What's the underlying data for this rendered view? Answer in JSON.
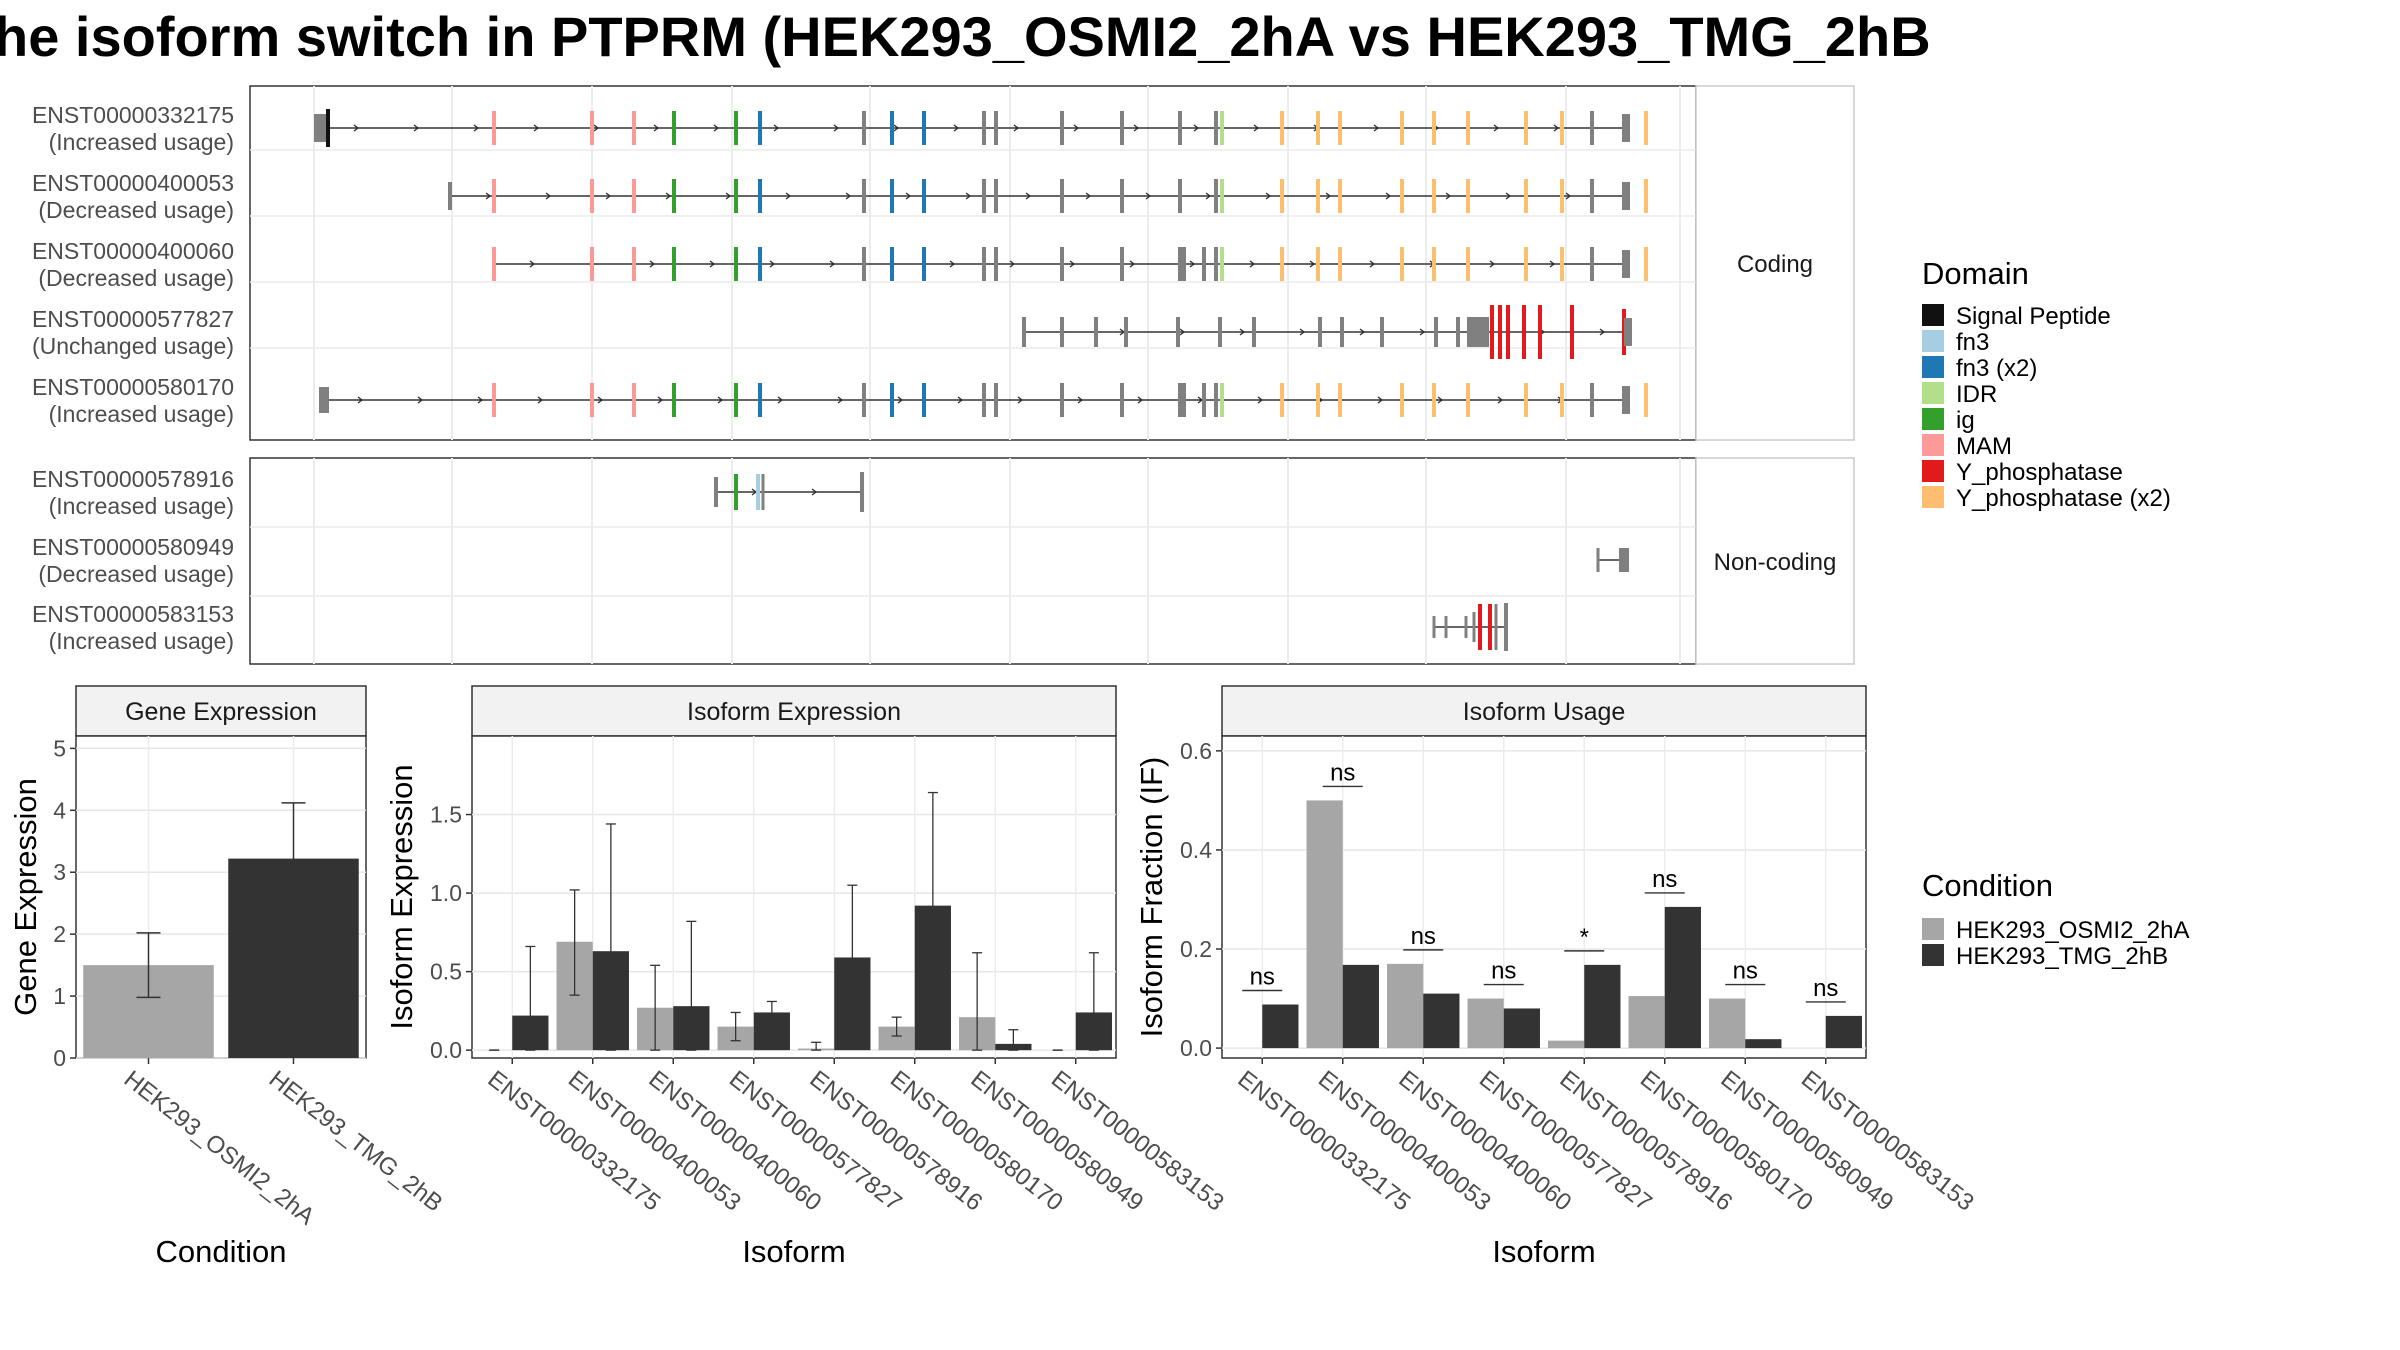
{
  "title": "he isoform switch in PTPRM (HEK293_OSMI2_2hA vs HEK293_TMG_2hB",
  "colors": {
    "domains": {
      "Signal Peptide": "#111111",
      "fn3": "#a6cee3",
      "fn3 (x2)": "#1f78b4",
      "IDR": "#b2df8a",
      "ig": "#33a02c",
      "MAM": "#fb9a99",
      "Y_phosphatase": "#e31a1c",
      "Y_phosphatase (x2)": "#fdbf6f"
    },
    "exon": "#808080",
    "condition_a": "#a6a6a6",
    "condition_b": "#333333"
  },
  "structure": {
    "facets": [
      "Coding",
      "Non-coding"
    ],
    "isoforms": [
      {
        "id": "ENST00000332175",
        "usage": "(Increased usage)",
        "facet": "Coding"
      },
      {
        "id": "ENST00000400053",
        "usage": "(Decreased usage)",
        "facet": "Coding"
      },
      {
        "id": "ENST00000400060",
        "usage": "(Decreased usage)",
        "facet": "Coding"
      },
      {
        "id": "ENST00000577827",
        "usage": "(Unchanged usage)",
        "facet": "Coding"
      },
      {
        "id": "ENST00000580170",
        "usage": "(Increased usage)",
        "facet": "Coding"
      },
      {
        "id": "ENST00000578916",
        "usage": "(Increased usage)",
        "facet": "Non-coding"
      },
      {
        "id": "ENST00000580949",
        "usage": "(Decreased usage)",
        "facet": "Non-coding"
      },
      {
        "id": "ENST00000583153",
        "usage": "(Increased usage)",
        "facet": "Non-coding"
      }
    ]
  },
  "legend_domain": {
    "title": "Domain",
    "items": [
      "Signal Peptide",
      "fn3",
      "fn3 (x2)",
      "IDR",
      "ig",
      "MAM",
      "Y_phosphatase",
      "Y_phosphatase (x2)"
    ]
  },
  "legend_condition": {
    "title": "Condition",
    "items": [
      "HEK293_OSMI2_2hA",
      "HEK293_TMG_2hB"
    ]
  },
  "chart_data": [
    {
      "type": "bar",
      "title": "Gene Expression",
      "xlabel": "Condition",
      "ylabel": "Gene Expression",
      "categories": [
        "HEK293_OSMI2_2hA",
        "HEK293_TMG_2hB"
      ],
      "values": [
        1.5,
        3.22
      ],
      "error_low": [
        0.98,
        2.35
      ],
      "error_high": [
        2.02,
        4.12
      ],
      "ylim": [
        0,
        5.2
      ],
      "yticks": [
        0,
        1,
        2,
        3,
        4,
        5
      ]
    },
    {
      "type": "bar",
      "title": "Isoform Expression",
      "xlabel": "Isoform",
      "ylabel": "Isoform Expression",
      "categories": [
        "ENST00000332175",
        "ENST00000400053",
        "ENST00000400060",
        "ENST00000577827",
        "ENST00000578916",
        "ENST00000580170",
        "ENST00000580949",
        "ENST00000583153"
      ],
      "series": [
        {
          "name": "HEK293_OSMI2_2hA",
          "values": [
            0.0,
            0.69,
            0.27,
            0.15,
            0.01,
            0.15,
            0.21,
            0.0
          ],
          "error_low": [
            0.0,
            0.35,
            0.0,
            0.06,
            0.0,
            0.09,
            0.0,
            0.0
          ],
          "error_high": [
            0.0,
            1.02,
            0.54,
            0.24,
            0.05,
            0.21,
            0.62,
            0.0
          ]
        },
        {
          "name": "HEK293_TMG_2hB",
          "values": [
            0.22,
            0.63,
            0.28,
            0.24,
            0.59,
            0.92,
            0.04,
            0.24
          ],
          "error_low": [
            0.0,
            0.0,
            0.0,
            0.18,
            0.12,
            0.19,
            0.0,
            0.0
          ],
          "error_high": [
            0.66,
            1.44,
            0.82,
            0.31,
            1.05,
            1.64,
            0.13,
            0.62
          ]
        }
      ],
      "ylim": [
        -0.05,
        2.0
      ],
      "yticks": [
        0.0,
        0.5,
        1.0,
        1.5
      ]
    },
    {
      "type": "bar",
      "title": "Isoform Usage",
      "xlabel": "Isoform",
      "ylabel": "Isoform Fraction (IF)",
      "categories": [
        "ENST00000332175",
        "ENST00000400053",
        "ENST00000400060",
        "ENST00000577827",
        "ENST00000578916",
        "ENST00000580170",
        "ENST00000580949",
        "ENST00000583153"
      ],
      "series": [
        {
          "name": "HEK293_OSMI2_2hA",
          "values": [
            0.0,
            0.5,
            0.17,
            0.1,
            0.015,
            0.105,
            0.1,
            0.0
          ]
        },
        {
          "name": "HEK293_TMG_2hB",
          "values": [
            0.088,
            0.168,
            0.11,
            0.08,
            0.168,
            0.285,
            0.018,
            0.065
          ]
        }
      ],
      "significance": [
        "ns",
        "ns",
        "ns",
        "ns",
        "*",
        "ns",
        "ns",
        "ns"
      ],
      "ylim": [
        -0.02,
        0.63
      ],
      "yticks": [
        0.0,
        0.2,
        0.4,
        0.6
      ]
    }
  ]
}
